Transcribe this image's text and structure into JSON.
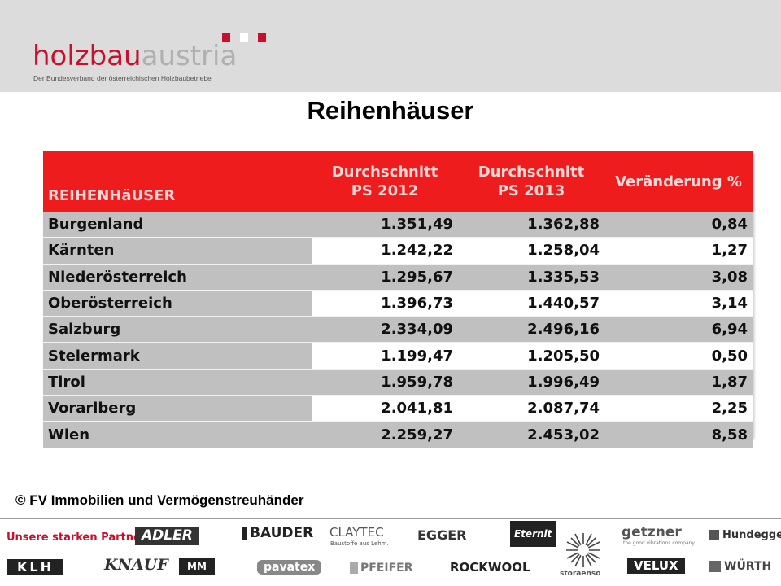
{
  "header": {
    "logo_holzbau": "holzbau",
    "logo_austria": "austria",
    "logo_subtitle": "Der Bundesverband der österreichischen Holzbaubetriebe"
  },
  "title": "Reihenhäuser",
  "table": {
    "headers": [
      "REIHENHäUSER",
      "Durchschnitt",
      "PS 2012",
      "Durchschnitt",
      "PS 2013",
      "Veränderung %"
    ],
    "rows": [
      [
        "Burgenland",
        "1.351,49",
        "1.362,88",
        "0,84"
      ],
      [
        "Kärnten",
        "1.242,22",
        "1.258,04",
        "1,27"
      ],
      [
        "Niederösterreich",
        "1.295,67",
        "1.335,53",
        "3,08"
      ],
      [
        "Oberösterreich",
        "1.396,73",
        "1.440,57",
        "3,14"
      ],
      [
        "Salzburg",
        "2.334,09",
        "2.496,16",
        "6,94"
      ],
      [
        "Steiermark",
        "1.199,47",
        "1.205,50",
        "0,50"
      ],
      [
        "Tirol",
        "1.959,78",
        "1.996,49",
        "1,87"
      ],
      [
        "Vorarlberg",
        "2.041,81",
        "2.087,74",
        "2,25"
      ],
      [
        "Wien",
        "2.259,27",
        "2.453,02",
        "8,58"
      ]
    ]
  },
  "copyright": "© FV Immobilien und Vermögenstreuhänder",
  "footer": {
    "partners_label": "Unsere starken Partner",
    "logos": [
      "ADLER",
      "BAUDER",
      "CLAYTEC",
      "Baustoffe aus Lehm.",
      "EGGER",
      "Eternit",
      "getzner",
      "the good vibrations company",
      "Hundegger",
      "KLH",
      "KNAUF",
      "MM",
      "pavatex",
      "PFEIFER",
      "ROCKWOOL",
      "storaenso",
      "VELUX",
      "WÜRTH"
    ]
  },
  "colors": {
    "brand_red": "#c8102e",
    "table_header": "#ee1c1c",
    "row_gray": "#c0c0c0"
  }
}
